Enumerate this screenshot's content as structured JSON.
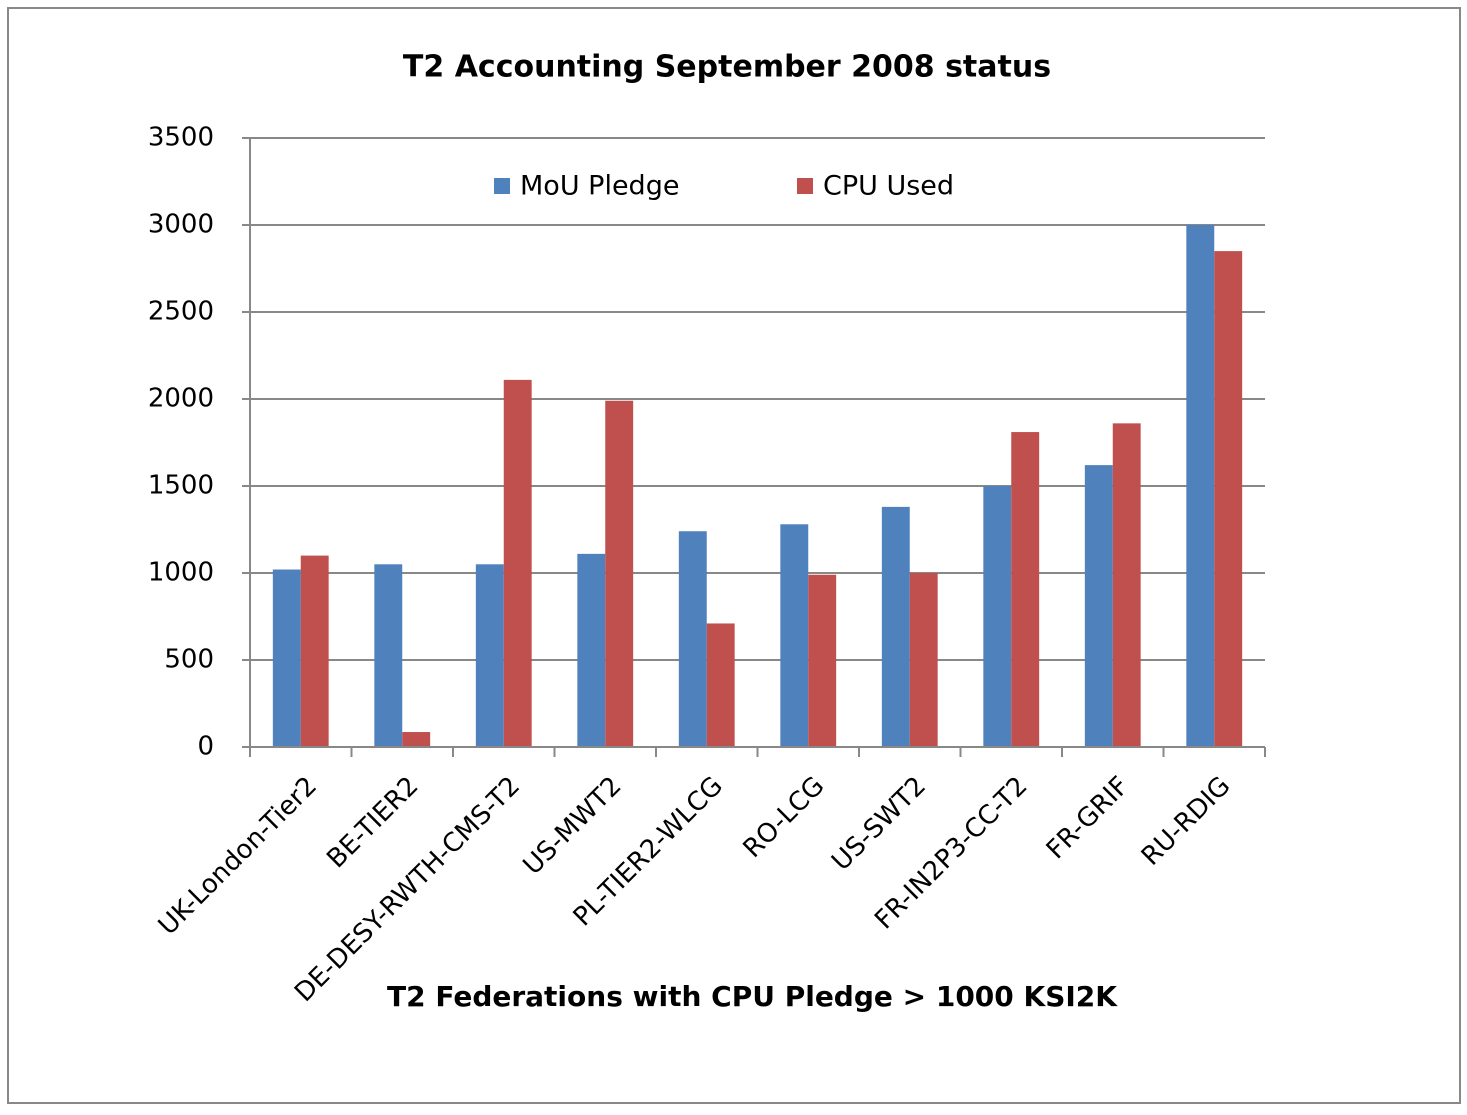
{
  "chart_data": {
    "type": "bar",
    "title": "T2 Accounting September 2008 status",
    "x_label": "T2 Federations with CPU Pledge > 1000  KSI2K",
    "categories": [
      "UK-London-Tier2",
      "BE-TIER2",
      "DE-DESY-RWTH-CMS-T2",
      "US-MWT2",
      "PL-TIER2-WLCG",
      "RO-LCG",
      "US-SWT2",
      "FR-IN2P3-CC-T2",
      "FR-GRIF",
      "RU-RDIG"
    ],
    "series": [
      {
        "name": "MoU Pledge",
        "color": "#4f81bd",
        "values": [
          1020,
          1050,
          1050,
          1110,
          1240,
          1280,
          1380,
          1500,
          1620,
          3000
        ]
      },
      {
        "name": "CPU Used",
        "color": "#c0504d",
        "values": [
          1100,
          86,
          2110,
          1990,
          710,
          990,
          1000,
          1810,
          1860,
          2850
        ]
      }
    ],
    "ylim": [
      0,
      3500
    ],
    "yticks": [
      0,
      500,
      1000,
      1500,
      2000,
      2500,
      3000,
      3500
    ],
    "grid": true,
    "legend": "top"
  }
}
